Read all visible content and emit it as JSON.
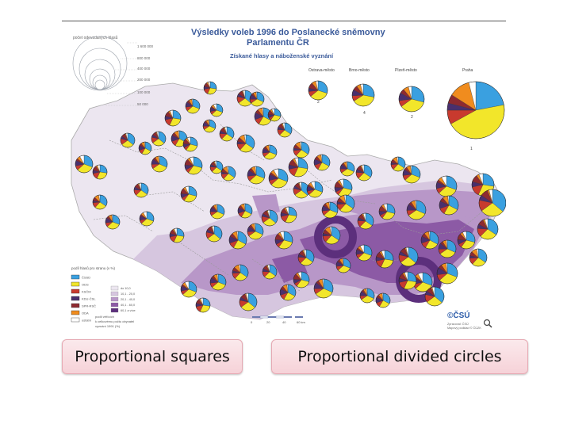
{
  "map": {
    "title_line1": "Výsledky voleb 1996 do Poslanecké sněmovny",
    "title_line2": "Parlamentu ČR",
    "subtitle": "Získané hlasy a náboženské vyznání",
    "legend_title": "počet odevzdaných hlasů",
    "legend_values": [
      "1 600 000",
      "800 000",
      "400 000",
      "200 000",
      "100 000",
      "50 000"
    ],
    "city_labels": [
      "Ostrava-město",
      "Brno-město",
      "Plzeň-město",
      "Praha"
    ],
    "city_numbers": [
      "2",
      "4",
      "2",
      "1"
    ],
    "key_title": "podíl hlasů pro stranu (v %)",
    "key_parties": [
      "ČSSD",
      "ODS",
      "KSČM",
      "KDU-ČSL",
      "SPR-RSČ",
      "ODA",
      "ostatní"
    ],
    "key_religion": [
      "do 10,0",
      "10,1 - 20,0",
      "20,1 - 40,0",
      "40,1 - 60,0",
      "60,1 a více"
    ],
    "key_note": [
      "podíl věřících",
      "k celkovému počtu obyvatel",
      "vyznání 1991 (%)"
    ],
    "scale_labels": [
      "0",
      "20",
      "40",
      "60 km"
    ],
    "logo": "©ČSÚ",
    "credit_lines": [
      "Zpracoval: ČSÚ",
      "Mapový podklad © ČÚZK"
    ],
    "party_colors": [
      "#3aa0e0",
      "#f2e62a",
      "#c83a2e",
      "#4a2f6e",
      "#8e2a30",
      "#f08c1e",
      "#ffffff"
    ],
    "religion_colors": [
      "#ece6f0",
      "#d6c6df",
      "#b897c8",
      "#8c5aa5",
      "#5c2f7c"
    ]
  },
  "labels": {
    "left": "Proportional squares",
    "right": "Proportional divided circles"
  }
}
